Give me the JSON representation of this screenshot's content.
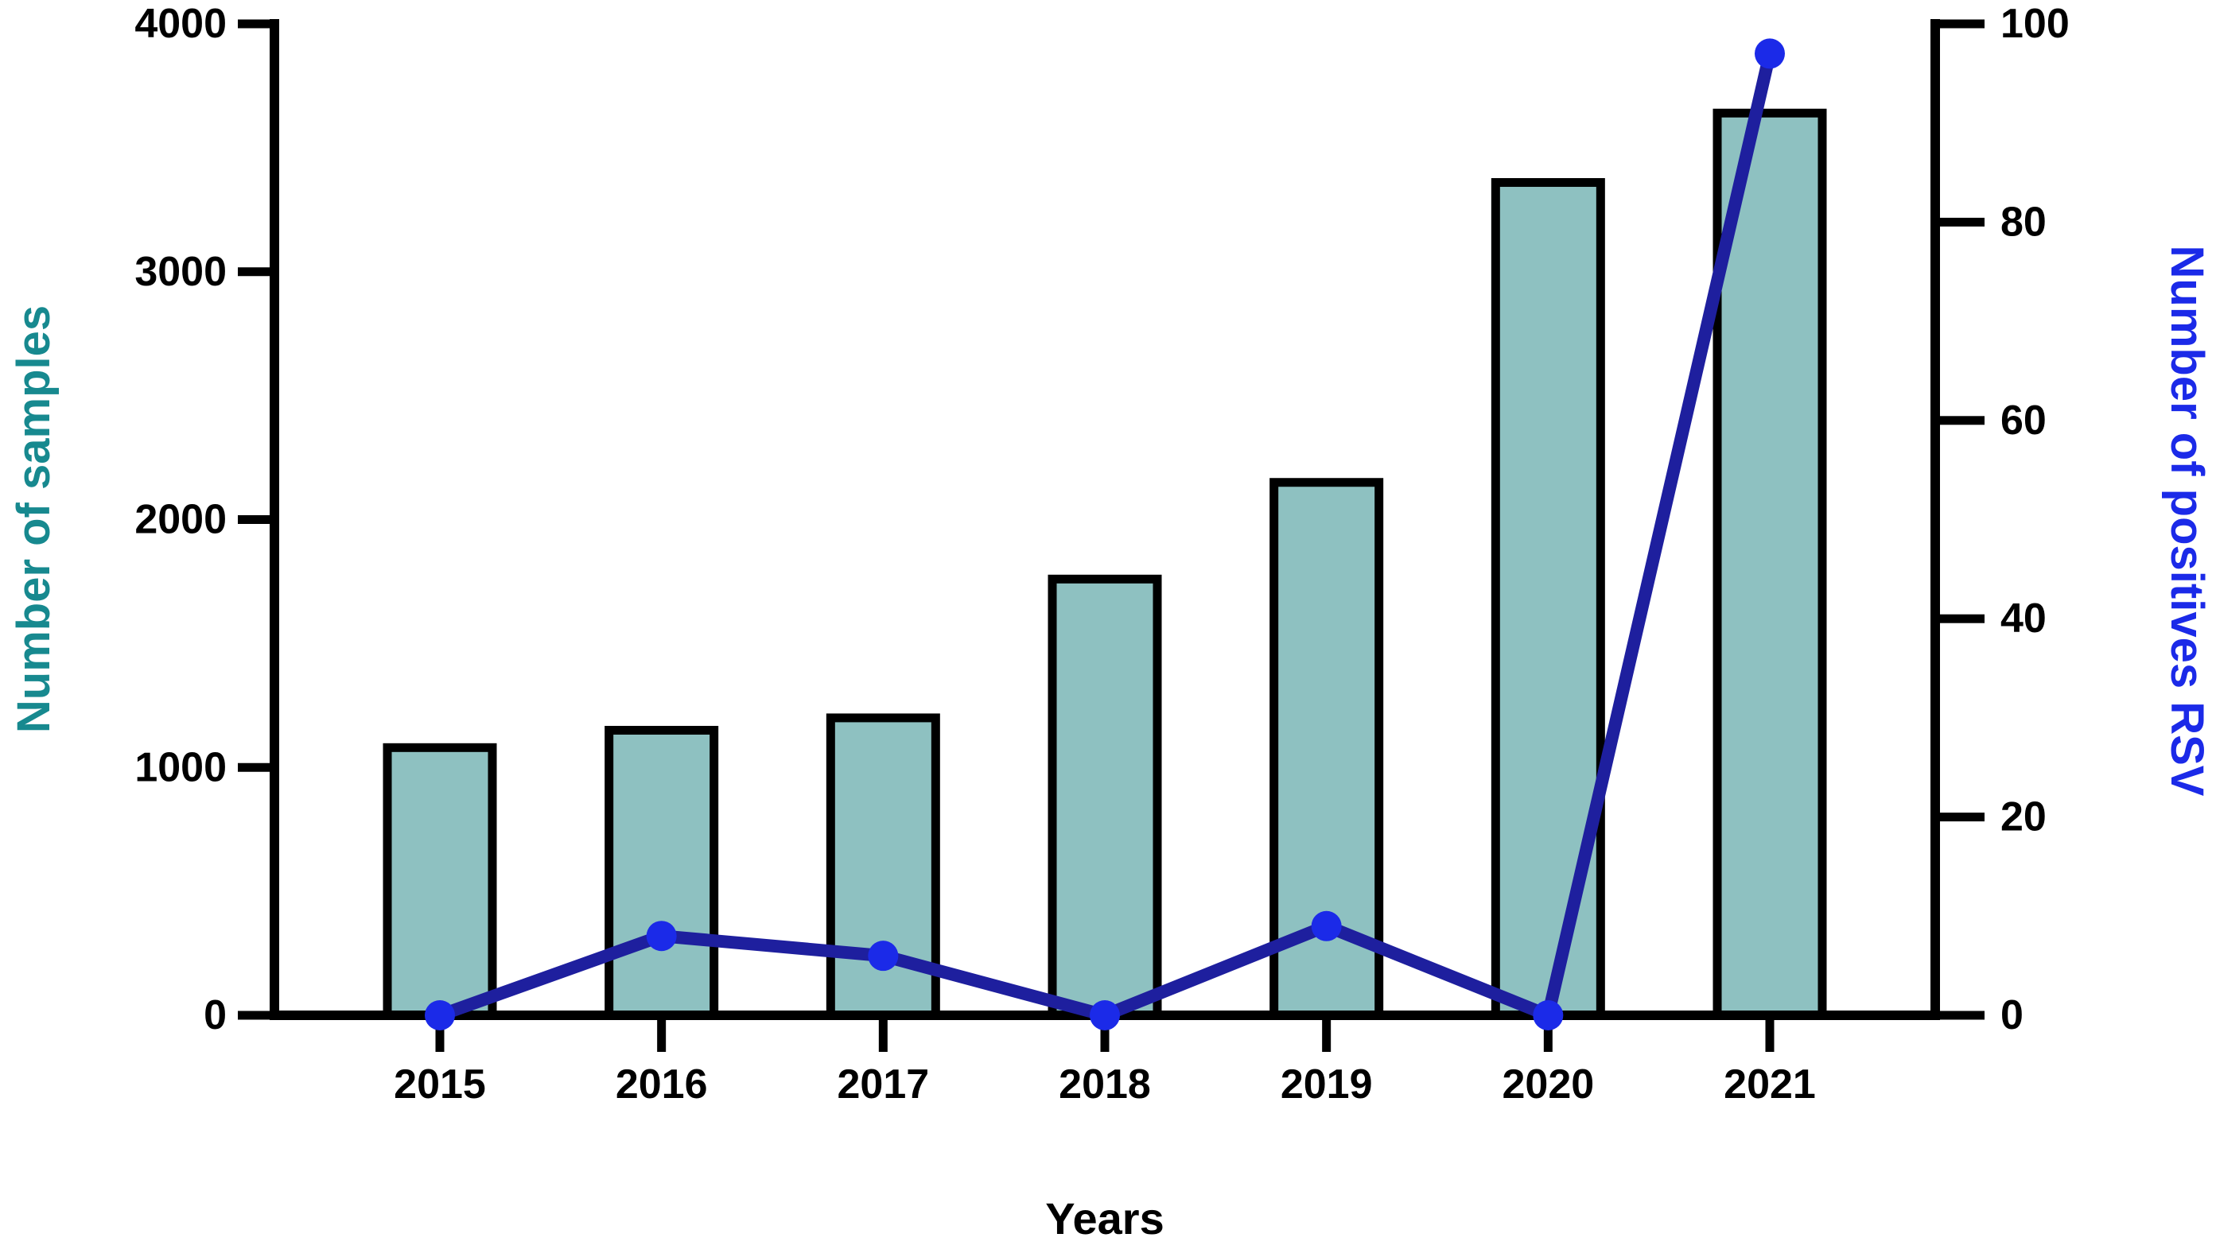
{
  "figure": {
    "x_axis_title": "Years",
    "left_axis": {
      "title": "Number of samples",
      "tick_values": [
        0,
        1000,
        2000,
        3000,
        4000
      ],
      "color": "#17898f"
    },
    "right_axis": {
      "title": "Number of positives RSV",
      "tick_values": [
        0,
        20,
        40,
        60,
        80,
        100
      ],
      "color": "#1b2ae8"
    }
  },
  "chart_data": {
    "type": "combo-bar-line",
    "categories": [
      "2015",
      "2016",
      "2017",
      "2018",
      "2019",
      "2020",
      "2021"
    ],
    "series": [
      {
        "name": "Number of samples",
        "type": "bar",
        "axis": "left",
        "values": [
          1080,
          1150,
          1200,
          1760,
          2150,
          3360,
          3640
        ]
      },
      {
        "name": "Number of positives RSV",
        "type": "line",
        "axis": "right",
        "values": [
          0,
          8,
          6,
          0,
          9,
          0,
          97
        ]
      }
    ],
    "title": "",
    "xlabel": "Years",
    "ylabel_left": "Number of samples",
    "ylabel_right": "Number of positives RSV",
    "ylim_left": [
      0,
      4000
    ],
    "ylim_right": [
      0,
      100
    ],
    "grid": false,
    "legend": "none"
  },
  "colors": {
    "bar_fill": "#8ec1c1",
    "bar_stroke": "#000000",
    "line": "#1e1f9e",
    "marker": "#1b2ae8",
    "axis": "#000000",
    "left_title": "#17898f",
    "right_title": "#1b2ae8"
  }
}
